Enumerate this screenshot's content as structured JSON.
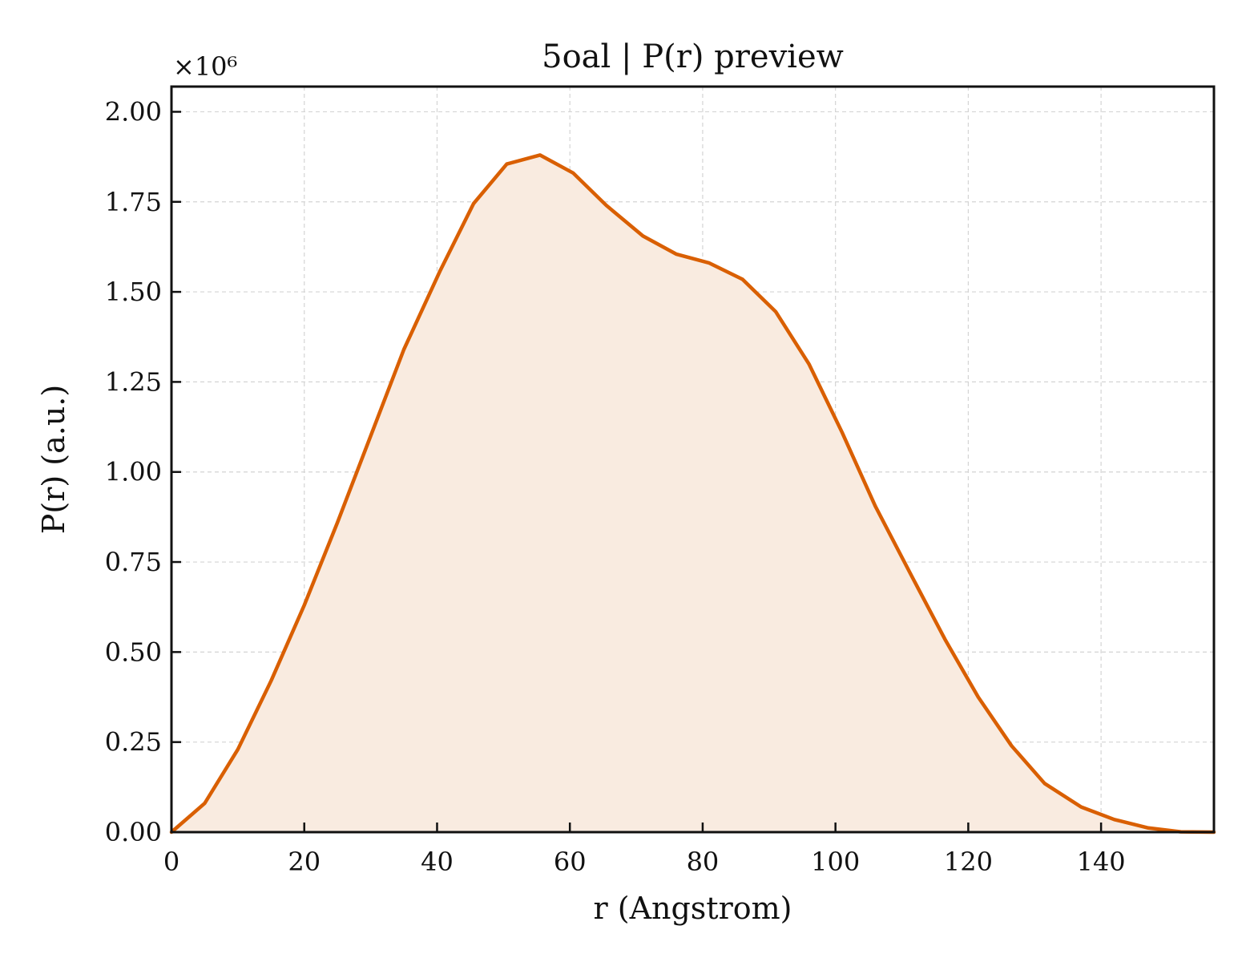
{
  "chart_data": {
    "type": "area",
    "title": "5oal | P(r) preview",
    "xlabel": "r (Angstrom)",
    "ylabel": "P(r) (a.u.)",
    "y_multiplier": "×10⁶",
    "xlim": [
      0,
      157
    ],
    "ylim": [
      0,
      2.07
    ],
    "x_ticks": [
      0,
      20,
      40,
      60,
      80,
      100,
      120,
      140
    ],
    "y_ticks": [
      0.0,
      0.25,
      0.5,
      0.75,
      1.0,
      1.25,
      1.5,
      1.75,
      2.0
    ],
    "x_tick_labels": [
      "0",
      "20",
      "40",
      "60",
      "80",
      "100",
      "120",
      "140"
    ],
    "y_tick_labels": [
      "0.00",
      "0.25",
      "0.50",
      "0.75",
      "1.00",
      "1.25",
      "1.50",
      "1.75",
      "2.00"
    ],
    "grid": true,
    "series": [
      {
        "color": "#d95f02",
        "fill_color": "#f9ebe0",
        "x": [
          0,
          5,
          10,
          15,
          20,
          25,
          30,
          35,
          40.5,
          45.5,
          50.5,
          55.5,
          60.5,
          65.5,
          71,
          76,
          81,
          86,
          91,
          96,
          101,
          106,
          111.5,
          116.5,
          121.5,
          126.5,
          131.5,
          137,
          142,
          147,
          152,
          157
        ],
        "y": [
          0.0,
          0.08,
          0.23,
          0.42,
          0.63,
          0.86,
          1.1,
          1.34,
          1.56,
          1.745,
          1.855,
          1.88,
          1.83,
          1.74,
          1.655,
          1.605,
          1.58,
          1.535,
          1.445,
          1.3,
          1.11,
          0.905,
          0.71,
          0.535,
          0.375,
          0.24,
          0.135,
          0.07,
          0.035,
          0.012,
          0.001,
          0.0
        ]
      }
    ]
  }
}
